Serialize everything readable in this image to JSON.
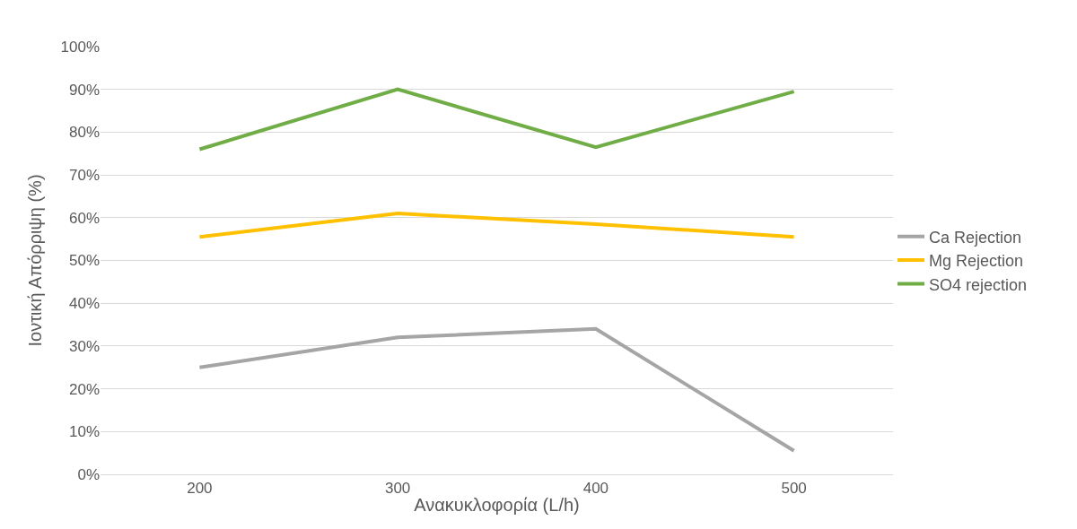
{
  "chart_data": {
    "type": "line",
    "xlabel": "Ανακυκλοφορία (L/h)",
    "ylabel": "Ιοντική Απόρριψη (%)",
    "categories": [
      "200",
      "300",
      "400",
      "500"
    ],
    "series": [
      {
        "name": "Ca Rejection",
        "color": "#a5a5a5",
        "values": [
          25,
          32,
          34,
          5.5
        ]
      },
      {
        "name": "Mg Rejection",
        "color": "#ffc000",
        "values": [
          55.5,
          61,
          58.5,
          55.5
        ]
      },
      {
        "name": "SO4 rejection",
        "color": "#70ad47",
        "values": [
          76,
          90,
          76.5,
          89.5
        ]
      }
    ],
    "ylim": [
      0,
      100
    ],
    "yticks": [
      {
        "value": 0,
        "label": "0%"
      },
      {
        "value": 10,
        "label": "10%"
      },
      {
        "value": 20,
        "label": "20%"
      },
      {
        "value": 30,
        "label": "30%"
      },
      {
        "value": 40,
        "label": "40%"
      },
      {
        "value": 50,
        "label": "50%"
      },
      {
        "value": 60,
        "label": "60%"
      },
      {
        "value": 70,
        "label": "70%"
      },
      {
        "value": 80,
        "label": "80%"
      },
      {
        "value": 90,
        "label": "90%"
      },
      {
        "value": 100,
        "label": "100%"
      }
    ],
    "grid": "y",
    "legend": "right",
    "marker": "none",
    "line_style": "solid"
  }
}
